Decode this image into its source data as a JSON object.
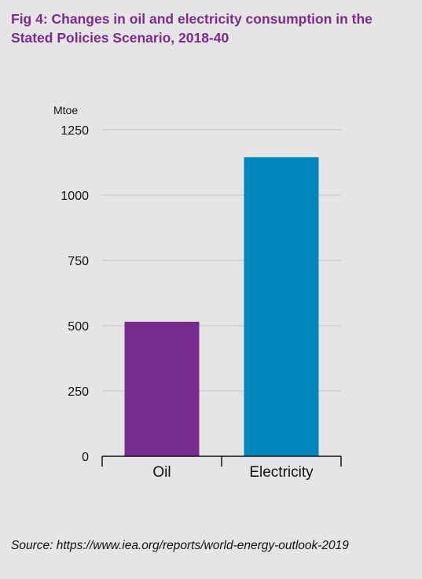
{
  "figure": {
    "title": "Fig 4: Changes in oil and electricity consumption in the Stated Policies Scenario, 2018-40",
    "source": "Source: https://www.iea.org/reports/world-energy-outlook-2019"
  },
  "chart_data": {
    "type": "bar",
    "title": "Fig 4: Changes in oil and electricity consumption in the Stated Policies Scenario, 2018-40",
    "xlabel": "",
    "ylabel": "Mtoe",
    "categories": [
      "Oil",
      "Electricity"
    ],
    "values": [
      515,
      1145
    ],
    "colors": [
      "#772b8c",
      "#0088be"
    ],
    "ylim": [
      0,
      1250
    ],
    "yticks": [
      0,
      250,
      500,
      750,
      1000,
      1250
    ],
    "grid": true,
    "legend": "none"
  }
}
